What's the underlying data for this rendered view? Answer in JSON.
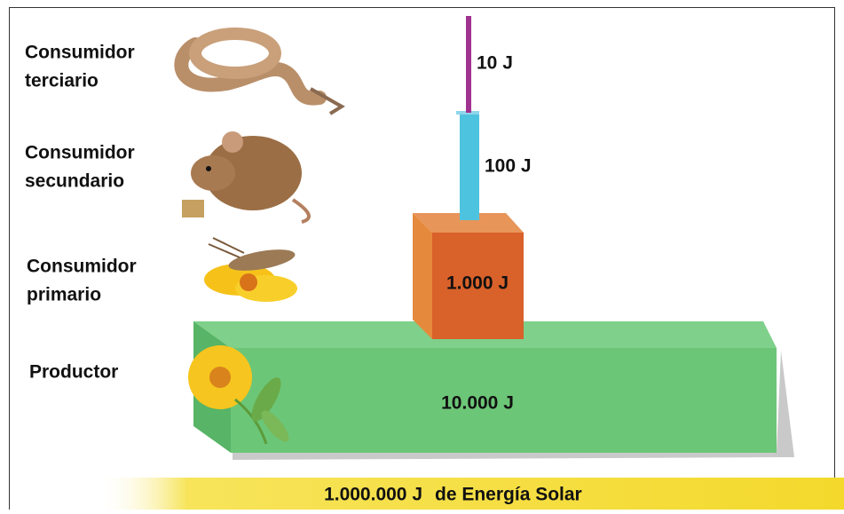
{
  "levels": [
    {
      "label": [
        "Consumidor",
        "terciario"
      ],
      "energy": "10 J"
    },
    {
      "label": [
        "Consumidor",
        "secundario"
      ],
      "energy": "100 J"
    },
    {
      "label": [
        "Consumidor",
        "primario"
      ],
      "energy": "1.000 J"
    },
    {
      "label": [
        "Productor"
      ],
      "energy": "10.000 J"
    }
  ],
  "solar": {
    "amount": "1.000.000 J",
    "text": "de Energía Solar"
  }
}
